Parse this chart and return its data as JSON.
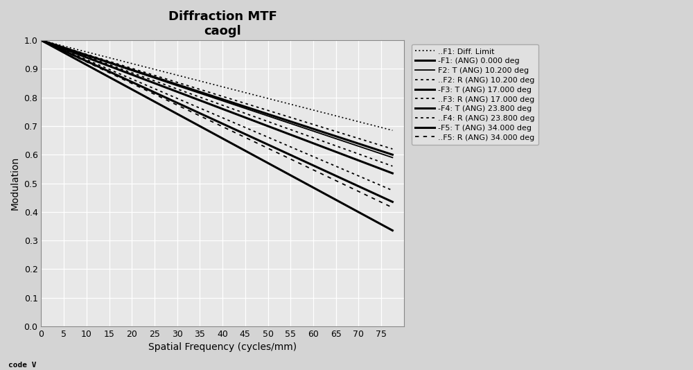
{
  "title_line1": "Diffraction MTF",
  "title_line2": "caogl",
  "xlabel": "Spatial Frequency (cycles/mm)",
  "ylabel": "Modulation",
  "xlim": [
    0,
    80
  ],
  "ylim": [
    0,
    1.0
  ],
  "xticks": [
    0,
    5,
    10,
    15,
    20,
    25,
    30,
    35,
    40,
    45,
    50,
    55,
    60,
    65,
    70,
    75
  ],
  "yticks": [
    0,
    0.1,
    0.2,
    0.3,
    0.4,
    0.5,
    0.6,
    0.7,
    0.8,
    0.9,
    1.0
  ],
  "background_color": "#d4d4d4",
  "plot_bg_color": "#e8e8e8",
  "curve_params": [
    {
      "end_val": 0.685,
      "linestyle": "fine_dot",
      "lw": 1.2,
      "label": "··F1: Diff. Limit"
    },
    {
      "end_val": 0.6,
      "linestyle": "solid",
      "lw": 2.2,
      "label": "–F1: (ANG) 0.000 deg"
    },
    {
      "end_val": 0.59,
      "linestyle": "solid",
      "lw": 1.3,
      "label": "F2: T (ANG) 10.200 deg"
    },
    {
      "end_val": 0.62,
      "linestyle": "med_dot",
      "lw": 1.3,
      "label": "··F2: R (ANG) 10.200 deg"
    },
    {
      "end_val": 0.535,
      "linestyle": "solid",
      "lw": 2.2,
      "label": "–F3: T (ANG) 17.000 deg"
    },
    {
      "end_val": 0.56,
      "linestyle": "med_dot",
      "lw": 1.3,
      "label": "··F3: R (ANG) 17.000 deg"
    },
    {
      "end_val": 0.435,
      "linestyle": "solid",
      "lw": 2.2,
      "label": "–F4: T (ANG) 23.800 deg"
    },
    {
      "end_val": 0.475,
      "linestyle": "med_dot",
      "lw": 1.3,
      "label": "··F4: R (ANG) 23.800 deg"
    },
    {
      "end_val": 0.335,
      "linestyle": "solid",
      "lw": 2.2,
      "label": "–F5: T (ANG) 34.000 deg"
    },
    {
      "end_val": 0.415,
      "linestyle": "coarse_dot",
      "lw": 1.3,
      "label": "··F5: R (ANG) 34.000 deg"
    }
  ],
  "legend_labels": [
    "..F1: Diff. Limit",
    "-F1: (ANG) 0.000 deg",
    "F2: T (ANG) 10.200 deg",
    "..F2: R (ANG) 10.200 deg",
    "-F3: T (ANG) 17.000 deg",
    "..F3: R (ANG) 17.000 deg",
    "-F4: T (ANG) 23.800 deg",
    "..F4: R (ANG) 23.800 deg",
    "-F5: T (ANG) 34.000 deg",
    "..F5: R (ANG) 34.000 deg"
  ],
  "watermark": "code V"
}
